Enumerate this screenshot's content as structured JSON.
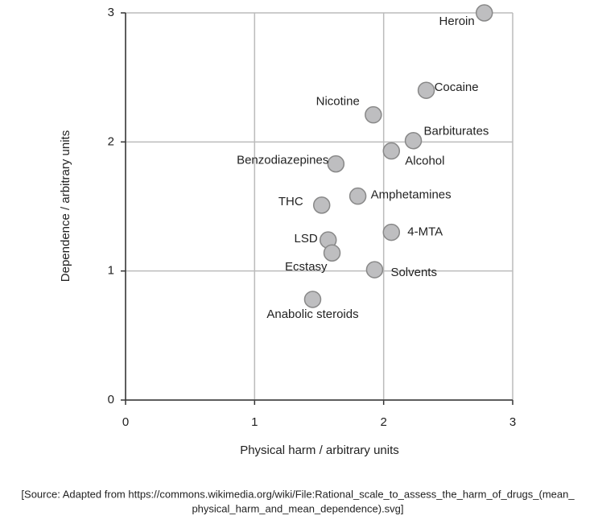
{
  "chart_data": {
    "type": "scatter",
    "x_label": "Physical harm / arbitrary units",
    "y_label": "Dependence / arbitrary units",
    "xlim": [
      0,
      3
    ],
    "ylim": [
      0,
      3
    ],
    "xticks": [
      0,
      1,
      2,
      3
    ],
    "yticks": [
      0,
      1,
      2,
      3
    ],
    "grid": true,
    "color": "#bebec0",
    "labels": [
      "Heroin",
      "Cocaine",
      "Nicotine",
      "Barbiturates",
      "Alcohol",
      "Benzodiazepines",
      "Amphetamines",
      "THC",
      "4-MTA",
      "LSD",
      "Ecstasy",
      "Solvents",
      "Anabolic steroids"
    ],
    "x": [
      2.78,
      2.33,
      1.92,
      2.23,
      2.06,
      1.63,
      1.8,
      1.52,
      2.06,
      1.57,
      1.6,
      1.93,
      1.45
    ],
    "y": [
      3.0,
      2.4,
      2.21,
      2.01,
      1.93,
      1.83,
      1.58,
      1.51,
      1.3,
      1.24,
      1.14,
      1.01,
      0.78
    ]
  },
  "source": [
    "[Source: Adapted from https://commons.wikimedia.org/wiki/File:Rational_scale_to_assess_the_harm_of_drugs_(mean_",
    "physical_harm_and_mean_dependence).svg]"
  ]
}
